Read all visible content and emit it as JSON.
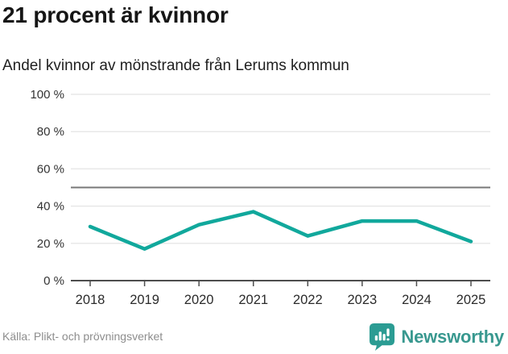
{
  "header": {
    "title": "21 procent är kvinnor",
    "subtitle": "Andel kvinnor av mönstrande från Lerums kommun"
  },
  "footer": {
    "source": "Källa: Plikt- och prövningsverket",
    "brand": "Newsworthy",
    "brand_color": "#2b9c93"
  },
  "chart_data": {
    "type": "line",
    "title": "21 procent är kvinnor",
    "subtitle": "Andel kvinnor av mönstrande från Lerums kommun",
    "x": [
      2018,
      2019,
      2020,
      2021,
      2022,
      2023,
      2024,
      2025
    ],
    "series": [
      {
        "name": "Andel kvinnor av mönstrande",
        "values": [
          29,
          17,
          30,
          37,
          24,
          32,
          32,
          21
        ]
      }
    ],
    "unit": "%",
    "xlabel": "",
    "ylabel": "",
    "ylim": [
      0,
      100
    ],
    "yticks": [
      0,
      20,
      40,
      60,
      80,
      100
    ],
    "ytick_suffix": " %",
    "reference_line": 50,
    "grid": true,
    "legend": "none",
    "colors": {
      "line": "#11a89c",
      "reference": "#787878",
      "grid": "#e8e8e8",
      "axis": "#4d4d4d",
      "tick_label": "#333333"
    }
  }
}
